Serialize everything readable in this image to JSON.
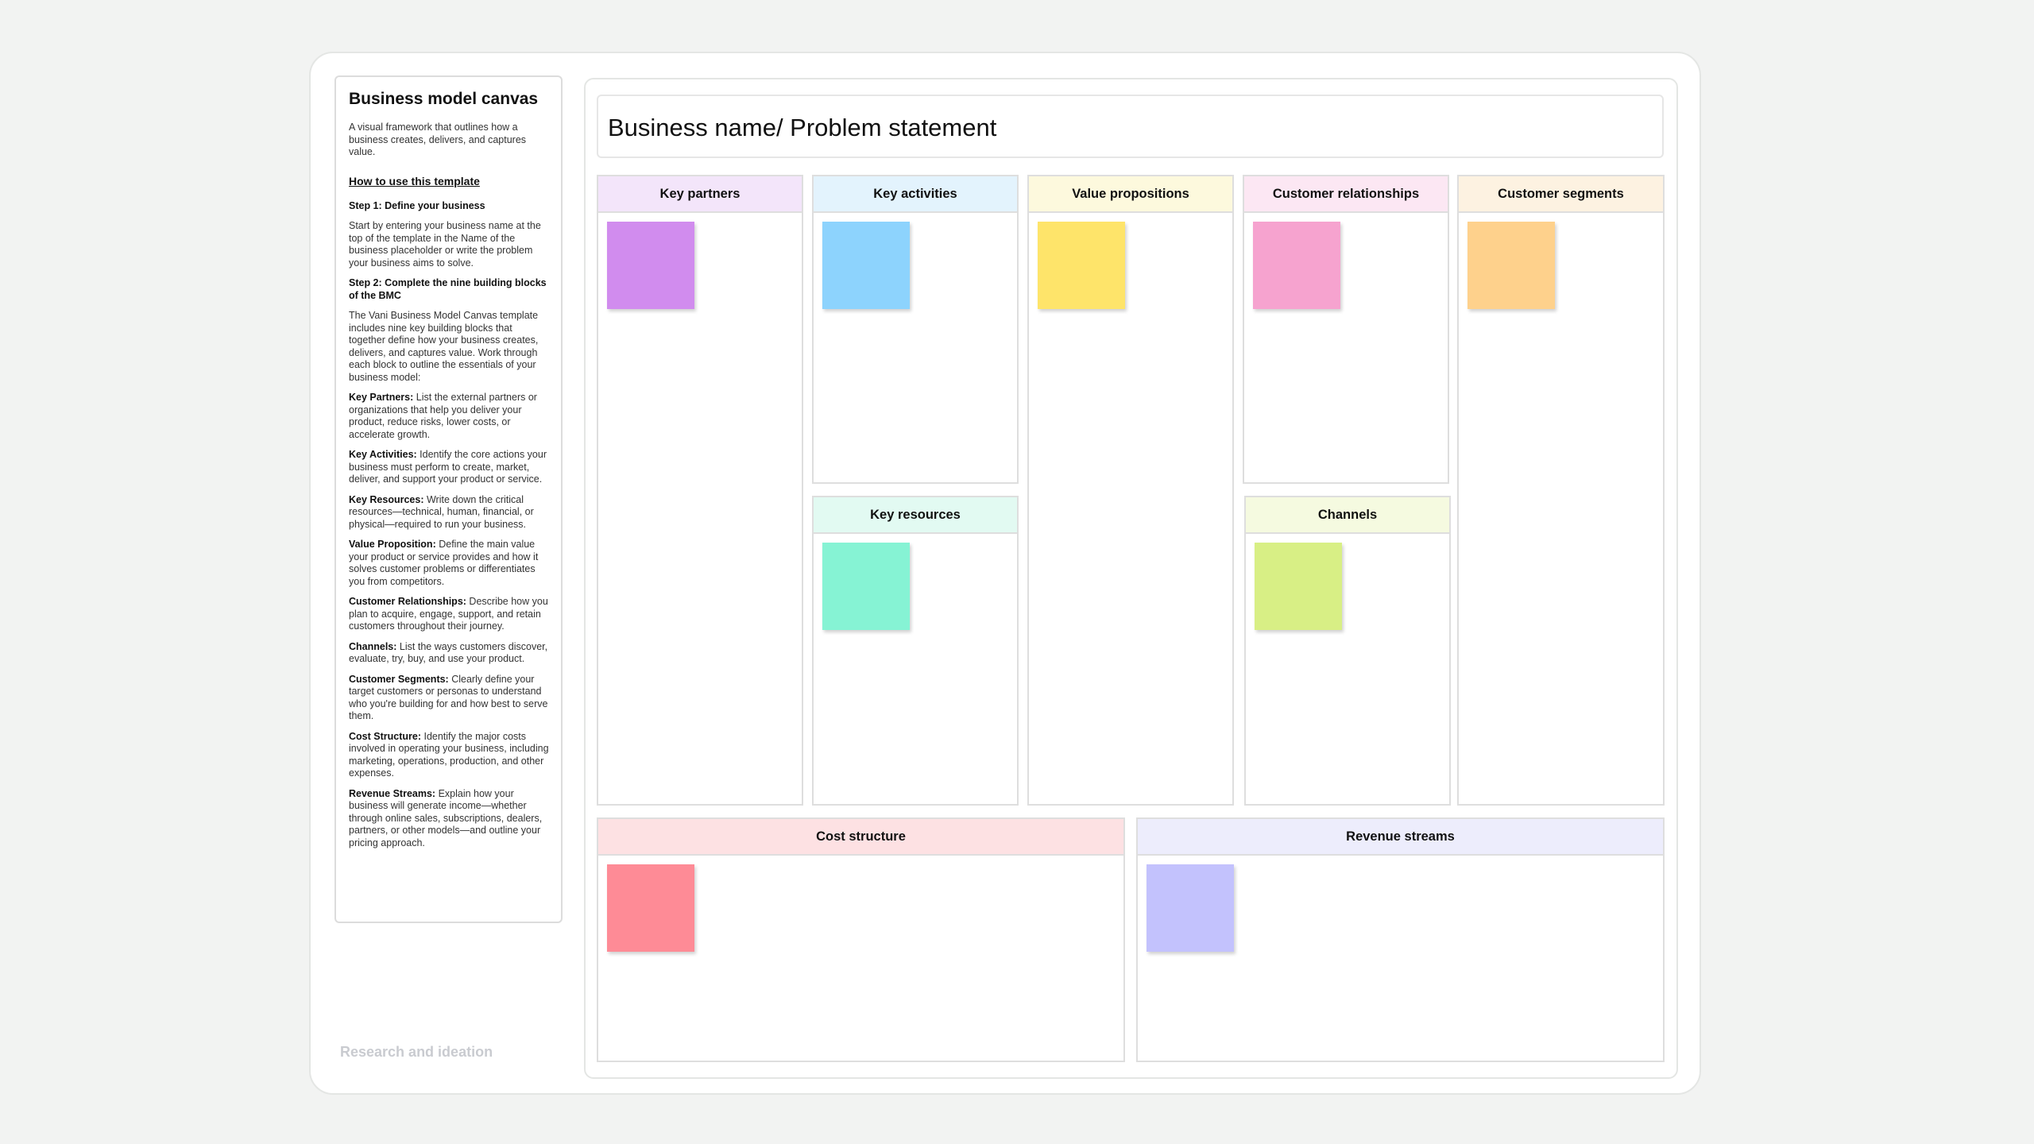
{
  "sidebar": {
    "title": "Business model canvas",
    "description": "A visual framework that outlines how a business creates, delivers, and captures value.",
    "how_to": "How to use this template",
    "steps": [
      {
        "heading": "Step 1: Define your business",
        "body": "Start by entering your business name at the top of the template in the Name of the business placeholder or write the problem your business aims to solve."
      },
      {
        "heading": "Step 2: Complete the nine building blocks of the BMC",
        "body": "The Vani Business Model Canvas template includes nine key building blocks that together define how your business creates, delivers, and captures value. Work through each block to outline the essentials of your business model:"
      }
    ],
    "items": [
      {
        "term": "Key Partners:",
        "desc": "List the external partners or organizations that help you deliver your product, reduce risks, lower costs, or accelerate growth."
      },
      {
        "term": "Key Activities:",
        "desc": "Identify the core actions your business must perform to create, market, deliver, and support your product or service."
      },
      {
        "term": "Key Resources:",
        "desc": "Write down the critical resources—technical, human, financial, or physical—required to run your business."
      },
      {
        "term": "Value Proposition:",
        "desc": "Define the main value your product or service provides and how it solves customer problems or differentiates you from competitors."
      },
      {
        "term": "Customer Relationships:",
        "desc": "Describe how you plan to acquire, engage, support, and retain customers throughout their journey."
      },
      {
        "term": "Channels:",
        "desc": "List the ways customers discover, evaluate, try, buy, and use your product."
      },
      {
        "term": "Customer Segments:",
        "desc": "Clearly define your target customers or personas to understand who you're building for and how best to serve them."
      },
      {
        "term": "Cost Structure:",
        "desc": "Identify the major costs involved in operating your business, including marketing, operations, production, and other expenses."
      },
      {
        "term": "Revenue Streams:",
        "desc": "Explain how your business will generate income—whether through online sales, subscriptions, dealers, partners, or other models—and outline your pricing approach."
      }
    ]
  },
  "section_label": "Research and ideation",
  "canvas": {
    "title": "Business name/ Problem statement",
    "blocks": [
      {
        "name": "Key partners"
      },
      {
        "name": "Key activities"
      },
      {
        "name": "Key resources"
      },
      {
        "name": "Value propositions"
      },
      {
        "name": "Customer relationships"
      },
      {
        "name": "Channels"
      },
      {
        "name": "Customer segments"
      },
      {
        "name": "Cost structure"
      },
      {
        "name": "Revenue streams"
      }
    ]
  }
}
